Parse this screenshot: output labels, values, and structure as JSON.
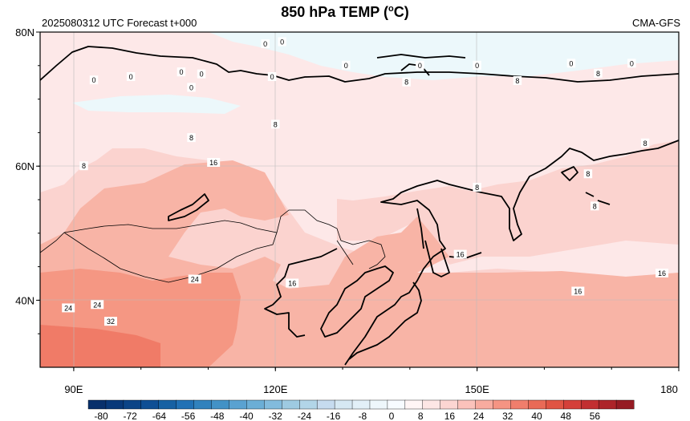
{
  "header": {
    "title_main": "850 hPa TEMP (",
    "title_degree": "o",
    "title_unit": "C)",
    "run_label": "2025080312 UTC Forecast t+000",
    "model_label": "CMA-GFS"
  },
  "map": {
    "lon_range": [
      85,
      180
    ],
    "lat_range": [
      30,
      80
    ],
    "lat_ticks": [
      {
        "value": 80,
        "label": "80N"
      },
      {
        "value": 60,
        "label": "60N"
      },
      {
        "value": 40,
        "label": "40N"
      }
    ],
    "lon_ticks": [
      {
        "value": 90,
        "label": "90E"
      },
      {
        "value": 120,
        "label": "120E"
      },
      {
        "value": 150,
        "label": "150E"
      },
      {
        "value": 180,
        "label": "180"
      }
    ],
    "contour_labels": [
      {
        "lon": 93.0,
        "lat": 72.8,
        "text": "0"
      },
      {
        "lon": 98.5,
        "lat": 73.3,
        "text": "0"
      },
      {
        "lon": 106.0,
        "lat": 74.0,
        "text": "0"
      },
      {
        "lon": 109.0,
        "lat": 73.7,
        "text": "0"
      },
      {
        "lon": 107.5,
        "lat": 71.7,
        "text": "0"
      },
      {
        "lon": 119.5,
        "lat": 73.3,
        "text": "0"
      },
      {
        "lon": 118.5,
        "lat": 78.2,
        "text": "0"
      },
      {
        "lon": 121.0,
        "lat": 78.5,
        "text": "0"
      },
      {
        "lon": 130.5,
        "lat": 75.0,
        "text": "0"
      },
      {
        "lon": 141.5,
        "lat": 75.0,
        "text": "0"
      },
      {
        "lon": 150.0,
        "lat": 75.0,
        "text": "0"
      },
      {
        "lon": 164.0,
        "lat": 75.3,
        "text": "0"
      },
      {
        "lon": 173.0,
        "lat": 75.3,
        "text": "0"
      },
      {
        "lon": 168.0,
        "lat": 73.8,
        "text": "8"
      },
      {
        "lon": 139.5,
        "lat": 72.5,
        "text": "8"
      },
      {
        "lon": 156.0,
        "lat": 72.7,
        "text": "8"
      },
      {
        "lon": 120.0,
        "lat": 66.2,
        "text": "8"
      },
      {
        "lon": 107.5,
        "lat": 64.2,
        "text": "8"
      },
      {
        "lon": 91.5,
        "lat": 60.0,
        "text": "8"
      },
      {
        "lon": 150.0,
        "lat": 56.8,
        "text": "8"
      },
      {
        "lon": 166.5,
        "lat": 58.8,
        "text": "8"
      },
      {
        "lon": 175.0,
        "lat": 63.4,
        "text": "8"
      },
      {
        "lon": 167.5,
        "lat": 54.0,
        "text": "8"
      },
      {
        "lon": 110.8,
        "lat": 60.5,
        "text": "16"
      },
      {
        "lon": 147.5,
        "lat": 46.8,
        "text": "16"
      },
      {
        "lon": 122.5,
        "lat": 42.5,
        "text": "16"
      },
      {
        "lon": 165.0,
        "lat": 41.3,
        "text": "16"
      },
      {
        "lon": 177.5,
        "lat": 44.0,
        "text": "16"
      },
      {
        "lon": 108.0,
        "lat": 43.1,
        "text": "24"
      },
      {
        "lon": 89.2,
        "lat": 38.8,
        "text": "24"
      },
      {
        "lon": 93.5,
        "lat": 39.3,
        "text": "24"
      },
      {
        "lon": 95.5,
        "lat": 36.8,
        "text": "32"
      }
    ]
  },
  "colorbar": {
    "labels": [
      "-80",
      "-72",
      "-64",
      "-56",
      "-48",
      "-40",
      "-32",
      "-24",
      "-16",
      "-8",
      "0",
      "8",
      "16",
      "24",
      "32",
      "40",
      "48",
      "56"
    ],
    "colors": [
      "#08306b",
      "#08397a",
      "#0b4487",
      "#0f4f95",
      "#1761a3",
      "#2171b5",
      "#3182bd",
      "#4292c6",
      "#5aa2d1",
      "#6baed6",
      "#82bbdd",
      "#9ecae1",
      "#b2d5e8",
      "#c6dbef",
      "#d6e8f3",
      "#e2f0f8",
      "#eef7fb",
      "#f7fbff",
      "#fff5f5",
      "#fde6e5",
      "#fcd5d2",
      "#fbc2bb",
      "#f8ab9f",
      "#f59483",
      "#f07e6c",
      "#e96a57",
      "#e05444",
      "#d4403a",
      "#c22f31",
      "#ad2429",
      "#961b23"
    ]
  },
  "legend": {
    "temperature_fill": {
      "band_0_8": "#fde8e8",
      "band_8_16": "#fbd3cf",
      "band_16_24": "#f8b4a6",
      "band_24_32": "#f59783",
      "band_32_40": "#f07b67",
      "band_neg8_0": "#ecf8fb"
    }
  }
}
